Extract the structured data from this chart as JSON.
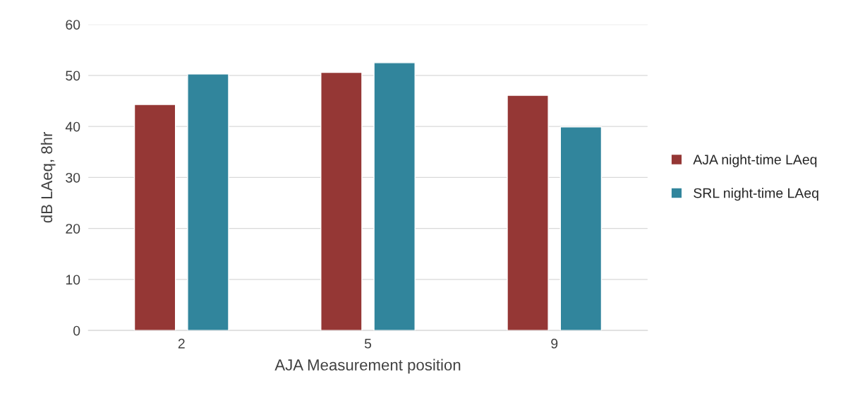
{
  "chart_data": {
    "type": "bar",
    "xlabel": "AJA Measurement position",
    "ylabel": "dB LAeq, 8hr",
    "categories": [
      "2",
      "5",
      "9"
    ],
    "series": [
      {
        "name": "AJA night-time LAeq",
        "color": "#953735",
        "values": [
          44.3,
          50.6,
          46.1
        ]
      },
      {
        "name": "SRL night-time LAeq",
        "color": "#31859c",
        "values": [
          50.3,
          52.5,
          39.9
        ]
      }
    ],
    "ylim": [
      0,
      60
    ],
    "yticks": [
      0,
      10,
      20,
      30,
      40,
      50,
      60
    ],
    "grid": "y",
    "legend": "right"
  }
}
